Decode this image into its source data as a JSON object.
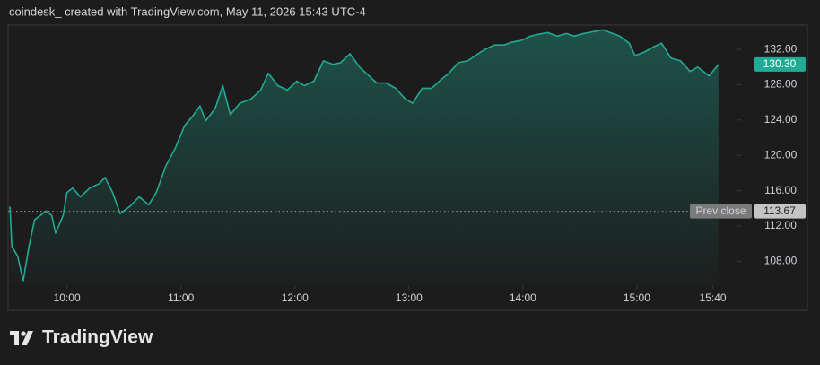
{
  "chart_data": {
    "type": "area",
    "title": "coindesk_ created with TradingView.com, May 11, 2026 15:43 UTC-4",
    "brand": "TradingView",
    "color": "#22ab94",
    "x": [
      "09:30",
      "09:31",
      "09:34",
      "09:37",
      "09:40",
      "09:43",
      "09:46",
      "09:49",
      "09:52",
      "09:54",
      "09:58",
      "10:00",
      "10:03",
      "10:07",
      "10:12",
      "10:17",
      "10:20",
      "10:24",
      "10:28",
      "10:33",
      "10:38",
      "10:43",
      "10:47",
      "10:52",
      "10:57",
      "11:02",
      "11:06",
      "11:10",
      "11:13",
      "11:18",
      "11:22",
      "11:26",
      "11:31",
      "11:37",
      "11:42",
      "11:46",
      "11:51",
      "11:56",
      "12:01",
      "12:05",
      "12:10",
      "12:15",
      "12:20",
      "12:24",
      "12:29",
      "12:34",
      "12:39",
      "12:43",
      "12:48",
      "12:53",
      "12:58",
      "13:02",
      "13:07",
      "13:12",
      "13:17",
      "13:21",
      "13:26",
      "13:31",
      "13:35",
      "13:40",
      "13:45",
      "13:50",
      "13:54",
      "13:59",
      "14:04",
      "14:08",
      "14:13",
      "14:18",
      "14:23",
      "14:27",
      "14:32",
      "14:37",
      "14:42",
      "14:46",
      "14:51",
      "14:56",
      "14:59",
      "15:04",
      "15:09",
      "15:13",
      "15:18",
      "15:23",
      "15:28",
      "15:32",
      "15:38",
      "15:43"
    ],
    "series": [
      {
        "values": [
          114.2,
          109.7,
          108.6,
          105.8,
          109.7,
          112.7,
          113.2,
          113.7,
          113.2,
          111.2,
          113.2,
          115.8,
          116.3,
          115.3,
          116.3,
          116.8,
          117.5,
          115.8,
          113.4,
          114.2,
          115.3,
          114.4,
          115.8,
          118.8,
          120.8,
          123.4,
          124.4,
          125.6,
          123.9,
          125.3,
          127.9,
          124.6,
          125.9,
          126.4,
          127.4,
          129.3,
          127.9,
          127.4,
          128.4,
          127.9,
          128.4,
          130.7,
          130.3,
          130.5,
          131.5,
          130.0,
          129.0,
          128.2,
          128.2,
          127.6,
          126.4,
          125.9,
          127.6,
          127.6,
          128.6,
          129.3,
          130.5,
          130.7,
          131.3,
          132.0,
          132.5,
          132.5,
          132.8,
          133.0,
          133.5,
          133.7,
          133.9,
          133.5,
          133.8,
          133.5,
          133.8,
          134.0,
          134.2,
          133.9,
          133.5,
          132.7,
          131.3,
          131.7,
          132.3,
          132.7,
          131.0,
          130.7,
          129.5,
          130.0,
          129.0,
          130.3
        ]
      }
    ],
    "xlim": [
      "09:29",
      "15:52"
    ],
    "xticks": [
      "10:00",
      "11:00",
      "12:00",
      "13:00",
      "14:00",
      "15:00",
      "15:40"
    ],
    "ylim": [
      105.3,
      134.75
    ],
    "yticks": [
      {
        "value": 108,
        "label": "108.00"
      },
      {
        "value": 112,
        "label": "112.00"
      },
      {
        "value": 116,
        "label": "116.00"
      },
      {
        "value": 120,
        "label": "120.00"
      },
      {
        "value": 124,
        "label": "124.00"
      },
      {
        "value": 128,
        "label": "128.00"
      },
      {
        "value": 132,
        "label": "132.00"
      }
    ],
    "reference_line": {
      "name": "Prev close",
      "value": 113.67,
      "label": "113.67"
    },
    "last_value": {
      "value": 130.3,
      "label": "130.30"
    }
  }
}
